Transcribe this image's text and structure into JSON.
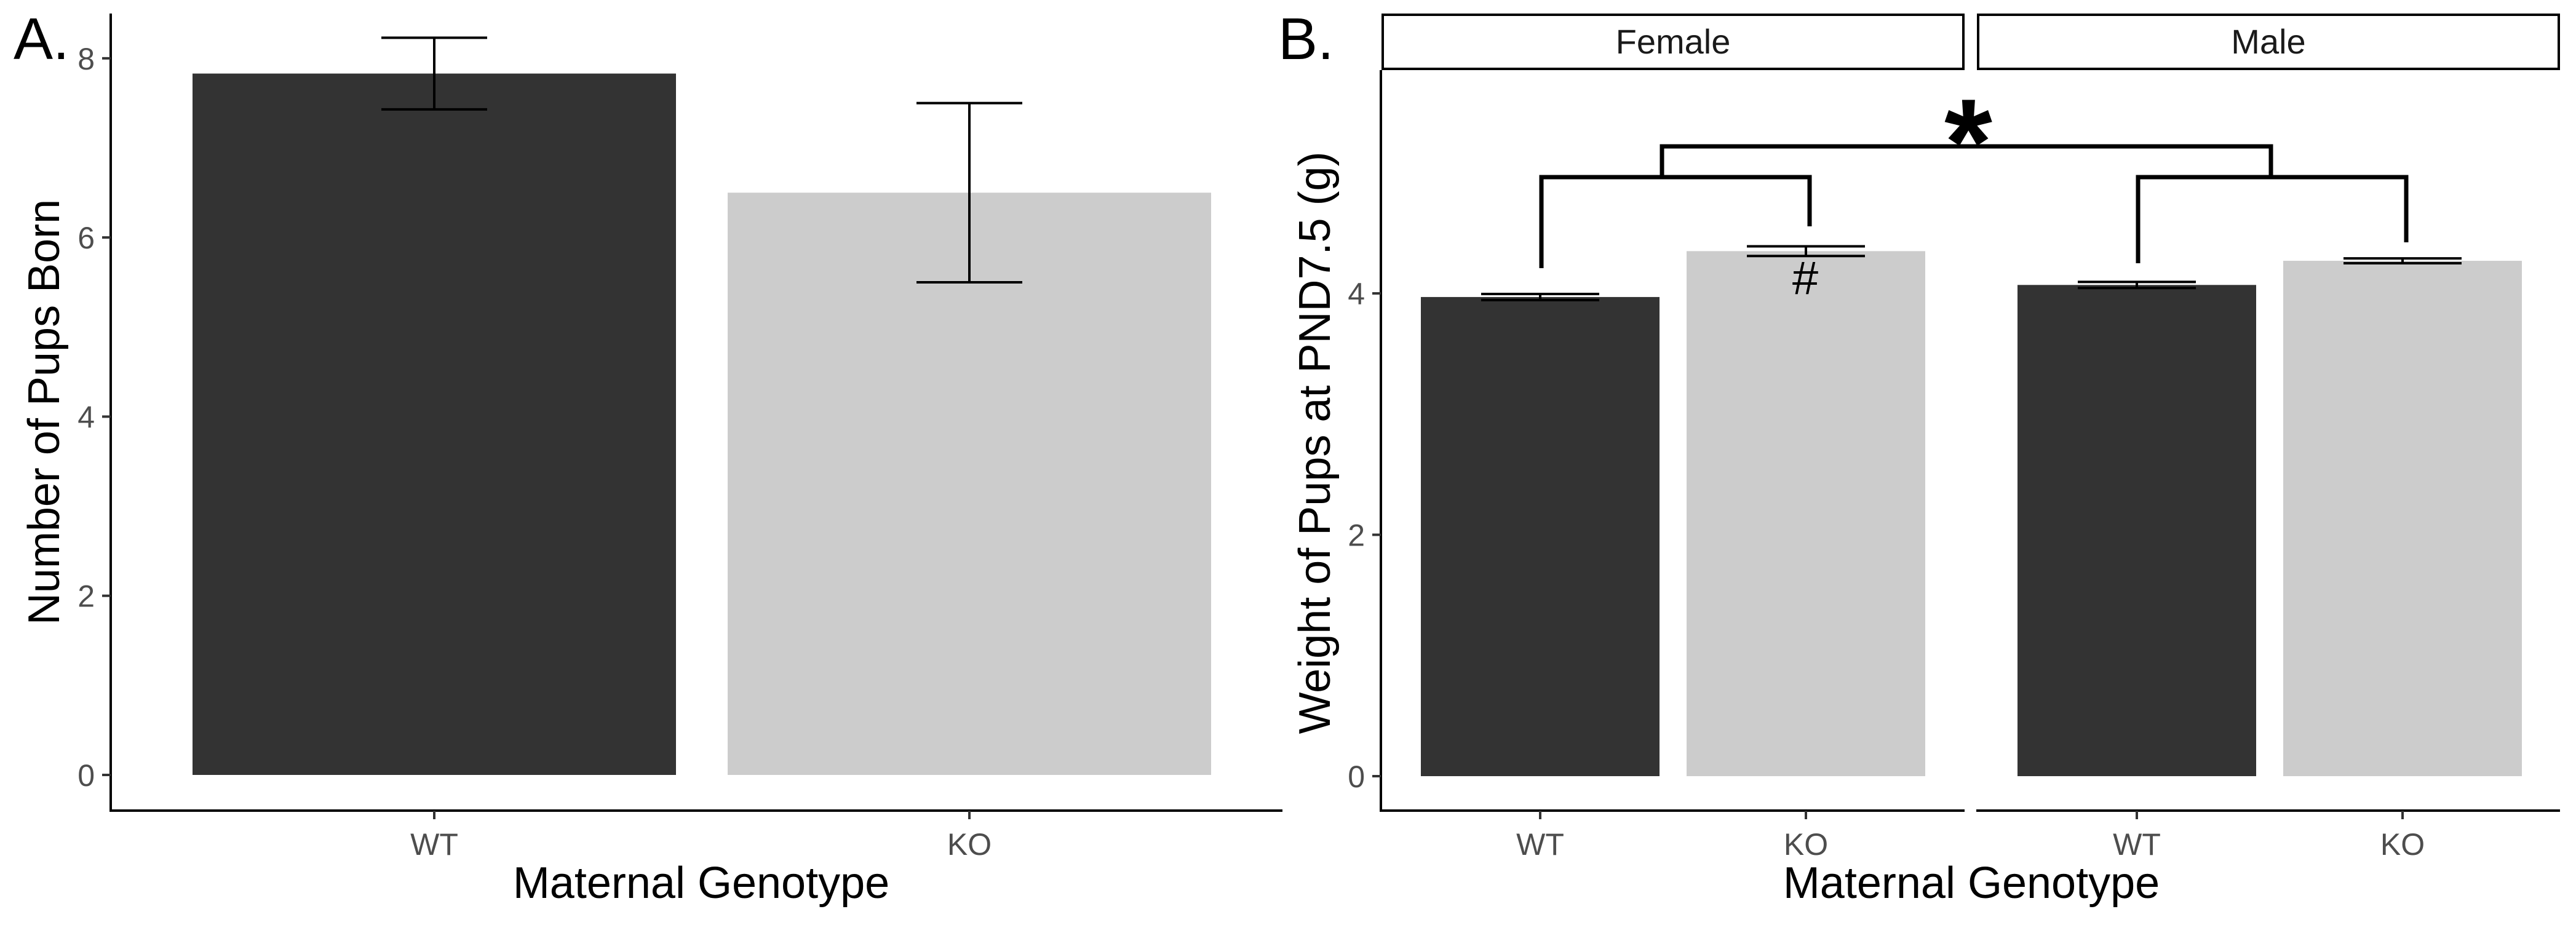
{
  "figure": {
    "colors": {
      "WT": "#333333",
      "KO": "#cccccc"
    }
  },
  "chart_data": [
    {
      "type": "bar",
      "panel_label": "A.",
      "xlabel": "Maternal Genotype",
      "ylabel": "Number of Pups Born",
      "categories": [
        "WT",
        "KO"
      ],
      "values": [
        7.83,
        6.5
      ],
      "error": [
        0.4,
        1.0
      ],
      "ylim": [
        0,
        8.5
      ],
      "yticks": [
        "0",
        "2",
        "4",
        "6",
        "8"
      ],
      "grid": false
    },
    {
      "type": "bar",
      "panel_label": "B.",
      "xlabel": "Maternal Genotype",
      "ylabel": "Weight of Pups at PND7.5 (g)",
      "facets": [
        {
          "name": "Female",
          "categories": [
            "WT",
            "KO"
          ],
          "values": [
            3.97,
            4.35
          ],
          "error": [
            0.025,
            0.04
          ]
        },
        {
          "name": "Male",
          "categories": [
            "WT",
            "KO"
          ],
          "values": [
            4.07,
            4.27
          ],
          "error": [
            0.025,
            0.02
          ]
        }
      ],
      "ylim": [
        0,
        5.85
      ],
      "yticks": [
        "0",
        "2",
        "4"
      ],
      "annotations": {
        "sex_effect": "*",
        "female_ko": "#"
      },
      "grid": false
    }
  ]
}
